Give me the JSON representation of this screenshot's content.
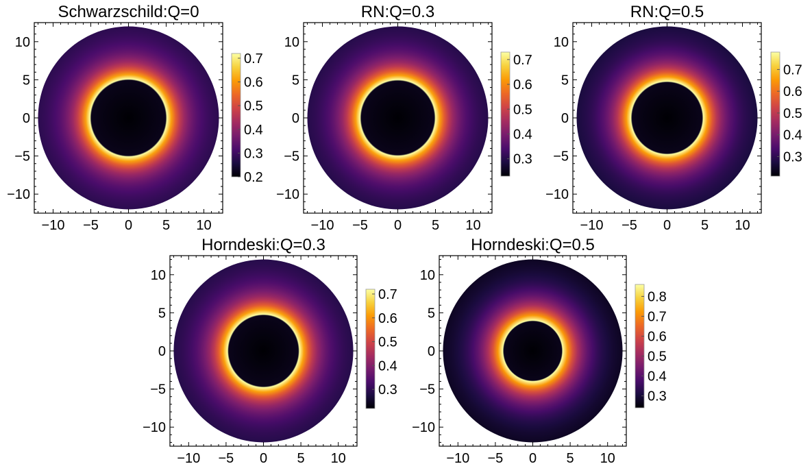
{
  "gradient_colors": [
    "#000004",
    "#1b0c41",
    "#4a0c6b",
    "#781c6d",
    "#a52c60",
    "#cf4446",
    "#ed6925",
    "#fb9b06",
    "#f7d13d",
    "#fcffa4"
  ],
  "chart_data": [
    {
      "type": "heatmap",
      "title": "Schwarzschild:Q=0",
      "x_range": [
        -12.5,
        12.5
      ],
      "y_range": [
        -12.5,
        12.5
      ],
      "x_ticks": [
        -10,
        -5,
        0,
        5,
        10
      ],
      "y_ticks": [
        -10,
        -5,
        0,
        5,
        10
      ],
      "x_ticklabels": [
        "−10",
        "−5",
        "0",
        "5",
        "10"
      ],
      "y_ticklabels": [
        "−10",
        "−5",
        "0",
        "5",
        "10"
      ],
      "disk_outer_radius": 12,
      "shadow_radius": 5.1,
      "colorbar": {
        "min": 0.2,
        "max": 0.72,
        "ticks": [
          0.2,
          0.3,
          0.4,
          0.5,
          0.6,
          0.7
        ],
        "ticklabels": [
          "0.2",
          "0.3",
          "0.4",
          "0.5",
          "0.6",
          "0.7"
        ]
      },
      "intensity_profile": {
        "shadow_interior": 0.2,
        "inner_edge": 0.72,
        "outer_edge": 0.26
      }
    },
    {
      "type": "heatmap",
      "title": "RN:Q=0.3",
      "x_range": [
        -12.5,
        12.5
      ],
      "y_range": [
        -12.5,
        12.5
      ],
      "x_ticks": [
        -10,
        -5,
        0,
        5,
        10
      ],
      "y_ticks": [
        -10,
        -5,
        0,
        5,
        10
      ],
      "x_ticklabels": [
        "−10",
        "−5",
        "0",
        "5",
        "10"
      ],
      "y_ticklabels": [
        "−10",
        "−5",
        "0",
        "5",
        "10"
      ],
      "disk_outer_radius": 12,
      "shadow_radius": 5.0,
      "colorbar": {
        "min": 0.23,
        "max": 0.73,
        "ticks": [
          0.3,
          0.4,
          0.5,
          0.6,
          0.7
        ],
        "ticklabels": [
          "0.3",
          "0.4",
          "0.5",
          "0.6",
          "0.7"
        ]
      },
      "intensity_profile": {
        "shadow_interior": 0.23,
        "inner_edge": 0.73,
        "outer_edge": 0.28
      }
    },
    {
      "type": "heatmap",
      "title": "RN:Q=0.5",
      "x_range": [
        -12.5,
        12.5
      ],
      "y_range": [
        -12.5,
        12.5
      ],
      "x_ticks": [
        -10,
        -5,
        0,
        5,
        10
      ],
      "y_ticks": [
        -10,
        -5,
        0,
        5,
        10
      ],
      "x_ticklabels": [
        "−10",
        "−5",
        "0",
        "5",
        "10"
      ],
      "y_ticklabels": [
        "−10",
        "−5",
        "0",
        "5",
        "10"
      ],
      "disk_outer_radius": 12,
      "shadow_radius": 4.8,
      "colorbar": {
        "min": 0.21,
        "max": 0.78,
        "ticks": [
          0.3,
          0.4,
          0.5,
          0.6,
          0.7
        ],
        "ticklabels": [
          "0.3",
          "0.4",
          "0.5",
          "0.6",
          "0.7"
        ]
      },
      "intensity_profile": {
        "shadow_interior": 0.21,
        "inner_edge": 0.78,
        "outer_edge": 0.25
      }
    },
    {
      "type": "heatmap",
      "title": "Horndeski:Q=0.3",
      "x_range": [
        -12.5,
        12.5
      ],
      "y_range": [
        -12.5,
        12.5
      ],
      "x_ticks": [
        -10,
        -5,
        0,
        5,
        10
      ],
      "y_ticks": [
        -10,
        -5,
        0,
        5,
        10
      ],
      "x_ticklabels": [
        "−10",
        "−5",
        "0",
        "5",
        "10"
      ],
      "y_ticklabels": [
        "−10",
        "−5",
        "0",
        "5",
        "10"
      ],
      "disk_outer_radius": 12,
      "shadow_radius": 4.8,
      "colorbar": {
        "min": 0.22,
        "max": 0.72,
        "ticks": [
          0.3,
          0.4,
          0.5,
          0.6,
          0.7
        ],
        "ticklabels": [
          "0.3",
          "0.4",
          "0.5",
          "0.6",
          "0.7"
        ]
      },
      "intensity_profile": {
        "shadow_interior": 0.22,
        "inner_edge": 0.72,
        "outer_edge": 0.27
      }
    },
    {
      "type": "heatmap",
      "title": "Horndeski:Q=0.5",
      "x_range": [
        -12.5,
        12.5
      ],
      "y_range": [
        -12.5,
        12.5
      ],
      "x_ticks": [
        -10,
        -5,
        0,
        5,
        10
      ],
      "y_ticks": [
        -10,
        -5,
        0,
        5,
        10
      ],
      "x_ticklabels": [
        "−10",
        "−5",
        "0",
        "5",
        "10"
      ],
      "y_ticklabels": [
        "−10",
        "−5",
        "0",
        "5",
        "10"
      ],
      "disk_outer_radius": 12,
      "shadow_radius": 4.0,
      "colorbar": {
        "min": 0.24,
        "max": 0.86,
        "ticks": [
          0.3,
          0.4,
          0.5,
          0.6,
          0.7,
          0.8
        ],
        "ticklabels": [
          "0.3",
          "0.4",
          "0.5",
          "0.6",
          "0.7",
          "0.8"
        ]
      },
      "intensity_profile": {
        "shadow_interior": 0.24,
        "inner_edge": 0.86,
        "outer_edge": 0.25
      }
    }
  ]
}
